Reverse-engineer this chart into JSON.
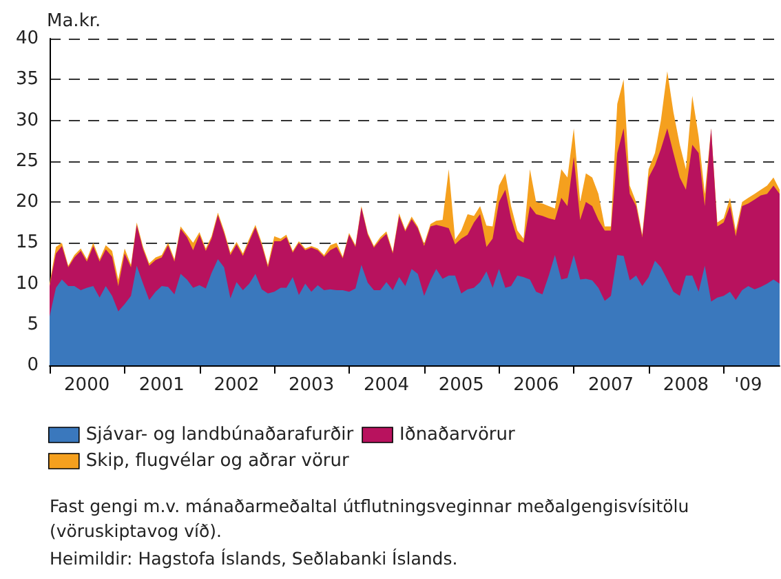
{
  "chart_data": {
    "type": "area",
    "stacked": true,
    "ylabel": "Ma.kr.",
    "annotations": [
      "Fast gengi m.v. mánaðarmeðaltal útflutningsveginnar meðalgengisvísitölu (vöruskiptavog víð).",
      "Heimildir: Hagstofa Íslands, Seðlabanki Íslands."
    ],
    "x": [
      "2000-01",
      "2000-02",
      "2000-03",
      "2000-04",
      "2000-05",
      "2000-06",
      "2000-07",
      "2000-08",
      "2000-09",
      "2000-10",
      "2000-11",
      "2000-12",
      "2001-01",
      "2001-02",
      "2001-03",
      "2001-04",
      "2001-05",
      "2001-06",
      "2001-07",
      "2001-08",
      "2001-09",
      "2001-10",
      "2001-11",
      "2001-12",
      "2002-01",
      "2002-02",
      "2002-03",
      "2002-04",
      "2002-05",
      "2002-06",
      "2002-07",
      "2002-08",
      "2002-09",
      "2002-10",
      "2002-11",
      "2002-12",
      "2003-01",
      "2003-02",
      "2003-03",
      "2003-04",
      "2003-05",
      "2003-06",
      "2003-07",
      "2003-08",
      "2003-09",
      "2003-10",
      "2003-11",
      "2003-12",
      "2004-01",
      "2004-02",
      "2004-03",
      "2004-04",
      "2004-05",
      "2004-06",
      "2004-07",
      "2004-08",
      "2004-09",
      "2004-10",
      "2004-11",
      "2004-12",
      "2005-01",
      "2005-02",
      "2005-03",
      "2005-04",
      "2005-05",
      "2005-06",
      "2005-07",
      "2005-08",
      "2005-09",
      "2005-10",
      "2005-11",
      "2005-12",
      "2006-01",
      "2006-02",
      "2006-03",
      "2006-04",
      "2006-05",
      "2006-06",
      "2006-07",
      "2006-08",
      "2006-09",
      "2006-10",
      "2006-11",
      "2006-12",
      "2007-01",
      "2007-02",
      "2007-03",
      "2007-04",
      "2007-05",
      "2007-06",
      "2007-07",
      "2007-08",
      "2007-09",
      "2007-10",
      "2007-11",
      "2007-12",
      "2008-01",
      "2008-02",
      "2008-03",
      "2008-04",
      "2008-05",
      "2008-06",
      "2008-07",
      "2008-08",
      "2008-09",
      "2008-10",
      "2008-11",
      "2008-12",
      "2009-01",
      "2009-02",
      "2009-03",
      "2009-04",
      "2009-05",
      "2009-06",
      "2009-07",
      "2009-08",
      "2009-09",
      "2009-10"
    ],
    "xlim": [
      "2000-01",
      "2009-10"
    ],
    "xticks": [
      {
        "value": "2000-01",
        "label": null
      },
      {
        "value": "2000-07",
        "label": "2000"
      },
      {
        "value": "2001-01",
        "label": null
      },
      {
        "value": "2001-07",
        "label": "2001"
      },
      {
        "value": "2002-01",
        "label": null
      },
      {
        "value": "2002-07",
        "label": "2002"
      },
      {
        "value": "2003-01",
        "label": null
      },
      {
        "value": "2003-07",
        "label": "2003"
      },
      {
        "value": "2004-01",
        "label": null
      },
      {
        "value": "2004-07",
        "label": "2004"
      },
      {
        "value": "2005-01",
        "label": null
      },
      {
        "value": "2005-07",
        "label": "2005"
      },
      {
        "value": "2006-01",
        "label": null
      },
      {
        "value": "2006-07",
        "label": "2006"
      },
      {
        "value": "2007-01",
        "label": null
      },
      {
        "value": "2007-07",
        "label": "2007"
      },
      {
        "value": "2008-01",
        "label": null
      },
      {
        "value": "2008-07",
        "label": "2008"
      },
      {
        "value": "2009-01",
        "label": null
      },
      {
        "value": "2009-05",
        "label": "'09"
      }
    ],
    "ylim": [
      0,
      40
    ],
    "yticks": [
      0,
      5,
      10,
      15,
      20,
      25,
      30,
      35,
      40
    ],
    "grid": "y",
    "legend": "bottom",
    "series": [
      {
        "name": "Sjávar- og landbúnaðarafurðir",
        "color": "#3a78bd",
        "values": [
          6,
          9.5,
          10.5,
          9.7,
          9.7,
          9.2,
          9.5,
          9.7,
          8.3,
          9.7,
          8.5,
          6.6,
          7.5,
          8.5,
          12.2,
          10,
          8,
          9,
          9.7,
          9.6,
          8.7,
          11.2,
          10.5,
          9.5,
          9.8,
          9.4,
          11.3,
          13,
          12,
          8.2,
          10.2,
          9.2,
          10,
          11.2,
          9.3,
          8.8,
          9,
          9.5,
          9.5,
          10.8,
          8.6,
          10,
          9,
          9.8,
          9.2,
          9.3,
          9.2,
          9.2,
          9,
          9.4,
          12.3,
          10.1,
          9.2,
          9.2,
          10.2,
          9.2,
          10.8,
          9.7,
          11.8,
          11.2,
          8.5,
          10.4,
          11.8,
          10.6,
          11,
          11,
          8.8,
          9.3,
          9.5,
          10.2,
          11.5,
          9.5,
          11.8,
          9.5,
          9.7,
          11,
          10.8,
          10.5,
          9,
          8.7,
          11,
          13.5,
          10.5,
          10.7,
          13.5,
          10.5,
          10.6,
          10.4,
          9.5,
          7.9,
          8.5,
          13.5,
          13.4,
          10.4,
          11,
          9.7,
          10.8,
          12.8,
          12,
          10.5,
          9,
          8.5,
          11,
          11,
          9,
          12.2,
          7.8,
          8.3,
          8.5,
          9,
          8,
          9.2,
          9.7,
          9.3,
          9.6,
          10,
          10.5,
          10
        ]
      },
      {
        "name": "Iðnaðarvörur",
        "color": "#b8125e",
        "values": [
          3.7,
          4.2,
          4.1,
          2.3,
          3.5,
          4.8,
          3.2,
          4.9,
          4.4,
          4.5,
          4.8,
          3.1,
          6.2,
          3.5,
          5,
          4.2,
          4.2,
          3.9,
          3.5,
          5.1,
          4,
          5.5,
          5.2,
          4.6,
          6.2,
          4.6,
          4.2,
          5.4,
          4.2,
          5.3,
          4.6,
          4.2,
          5.2,
          5.7,
          5.4,
          3.2,
          6.2,
          5.7,
          6.2,
          3,
          6.4,
          4.1,
          5.4,
          4.3,
          4.1,
          4.8,
          5.3,
          3.9,
          7,
          5.1,
          7,
          5.9,
          5.2,
          6.2,
          5.9,
          4.5,
          7.5,
          6.7,
          6.1,
          5.6,
          6.1,
          6.6,
          5.4,
          6.4,
          5.8,
          3.8,
          6.7,
          6.7,
          8,
          8.3,
          3,
          6,
          8.2,
          12,
          8.3,
          4.5,
          4.2,
          9,
          9.5,
          9.6,
          7,
          4.3,
          10,
          8.8,
          12,
          7.3,
          9.4,
          9.1,
          8.3,
          8.6,
          8,
          12.5,
          15.6,
          10.6,
          8.5,
          6,
          12.2,
          11.7,
          14.5,
          18.5,
          17,
          14.5,
          10.5,
          16,
          17,
          7.3,
          21.2,
          8.7,
          9,
          10.5,
          7.8,
          10.3,
          10.1,
          11,
          11.2,
          11,
          11.5,
          11
        ]
      },
      {
        "name": "Skip, flugvélar og aðrar vörur",
        "color": "#f5a01e",
        "values": [
          0.3,
          0.8,
          0.4,
          0.2,
          0.3,
          0.3,
          0.3,
          0.4,
          0.3,
          0.5,
          0.7,
          0.8,
          0.6,
          0.3,
          0.3,
          0.3,
          0.3,
          0.3,
          0.3,
          0.3,
          0.3,
          0.3,
          0.3,
          0.9,
          0.3,
          0.3,
          0.3,
          0.3,
          0.3,
          0.3,
          0.3,
          0.3,
          0.3,
          0.3,
          0.3,
          0.3,
          0.6,
          0.3,
          0.3,
          0.2,
          0.2,
          0.2,
          0.2,
          0.2,
          0.2,
          0.6,
          0.5,
          0.2,
          0.2,
          0.2,
          0.2,
          0.2,
          0.2,
          0.3,
          0.3,
          0.2,
          0.3,
          0.2,
          0.3,
          0.2,
          0.3,
          0.3,
          0.5,
          0.8,
          7.2,
          0.6,
          1,
          2.5,
          0.8,
          1,
          2.6,
          1.5,
          2,
          2,
          1.5,
          1,
          0.5,
          4.5,
          1.5,
          1.5,
          1.5,
          1.4,
          3.5,
          3.5,
          3.5,
          2.2,
          3.5,
          3.5,
          3.2,
          0.5,
          0.5,
          6,
          6,
          1,
          0.5,
          0.3,
          1,
          1.5,
          3.5,
          7,
          5,
          4,
          2.5,
          6,
          2,
          1.5,
          0,
          0.5,
          0.5,
          1,
          0.7,
          0.5,
          0.7,
          0.7,
          0.7,
          1,
          1,
          0.5
        ]
      }
    ]
  }
}
